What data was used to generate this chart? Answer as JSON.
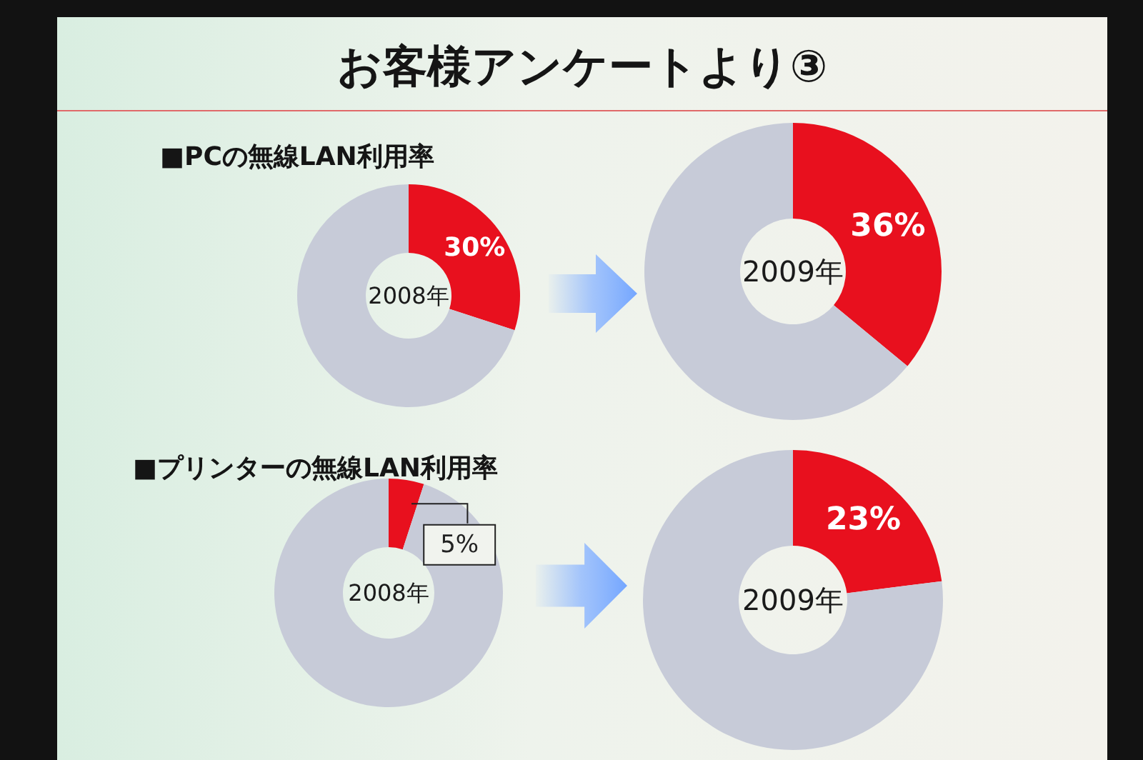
{
  "chart_data": [
    {
      "type": "other",
      "title": "お客様アンケートより③"
    },
    {
      "type": "donut",
      "title": "■PCの無線LAN利用率",
      "categories": [
        null,
        null
      ],
      "values": [
        30,
        70
      ],
      "colors": [
        "#e8101e",
        "#c7cbd8"
      ],
      "value_labels": [
        "30%",
        null
      ],
      "annotations": [
        "2008年"
      ]
    },
    {
      "type": "donut",
      "categories": [
        null,
        null
      ],
      "values": [
        36,
        64
      ],
      "colors": [
        "#e8101e",
        "#c7cbd8"
      ],
      "value_labels": [
        "36%",
        null
      ],
      "annotations": [
        "2009年"
      ]
    },
    {
      "type": "donut",
      "title": "■プリンターの無線LAN利用率",
      "categories": [
        null,
        null
      ],
      "values": [
        5,
        95
      ],
      "colors": [
        "#e8101e",
        "#c7cbd8"
      ],
      "value_labels": [
        "5%",
        null
      ],
      "annotations": [
        "2008年"
      ]
    },
    {
      "type": "donut",
      "categories": [
        null,
        null
      ],
      "values": [
        23,
        77
      ],
      "colors": [
        "#e8101e",
        "#c7cbd8"
      ],
      "value_labels": [
        "23%",
        null
      ],
      "annotations": [
        "2009年"
      ]
    }
  ]
}
